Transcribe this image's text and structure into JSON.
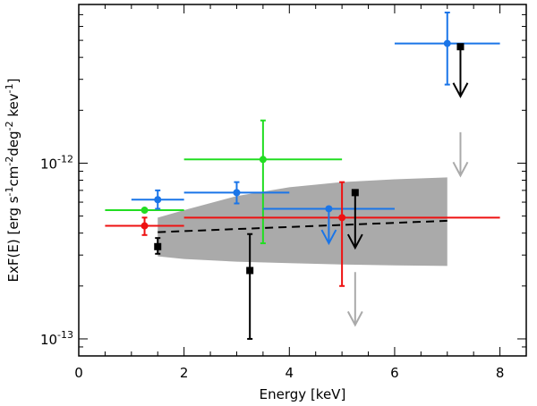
{
  "chart_data": {
    "type": "scatter",
    "title": "",
    "xlabel": "Energy [keV]",
    "ylabel_parts": [
      "ExF(E)  [erg s",
      "-1",
      "cm",
      "-2",
      "deg",
      "-2",
      " kev",
      "-1",
      "]"
    ],
    "xlim": [
      0,
      8.5
    ],
    "ylim": [
      8e-14,
      8e-12
    ],
    "yscale": "log",
    "x_ticks": [
      0,
      2,
      4,
      6,
      8
    ],
    "y_tick_labels": [
      {
        "value": 1e-12,
        "mantissa": "10",
        "exponent": "-12"
      },
      {
        "value": 1e-13,
        "mantissa": "10",
        "exponent": "-13"
      }
    ],
    "band": {
      "name": "model uncertainty",
      "color": "#aaaaaa",
      "x": [
        1.5,
        2.0,
        3.0,
        4.0,
        5.0,
        6.0,
        7.0
      ],
      "lower": [
        2.95e-13,
        2.85e-13,
        2.75e-13,
        2.7e-13,
        2.65e-13,
        2.62e-13,
        2.6e-13
      ],
      "upper": [
        4.9e-13,
        5.4e-13,
        6.5e-13,
        7.3e-13,
        7.8e-13,
        8.1e-13,
        8.3e-13
      ]
    },
    "model_line": {
      "name": "best-fit model",
      "color": "#000000",
      "x": [
        1.5,
        7.0
      ],
      "y": [
        4.05e-13,
        4.7e-13
      ]
    },
    "series": [
      {
        "name": "green",
        "color": "#22dd22",
        "marker": "circle",
        "points": [
          {
            "x": 1.25,
            "y": 5.4e-13,
            "xerr": [
              0.5,
              2.0
            ],
            "yerr": null
          },
          {
            "x": 3.5,
            "y": 1.05e-12,
            "xerr": [
              2.0,
              5.0
            ],
            "yerr": [
              3.5e-13,
              1.75e-12
            ]
          }
        ]
      },
      {
        "name": "blue",
        "color": "#1a75e8",
        "marker": "circle",
        "points": [
          {
            "x": 1.5,
            "y": 6.2e-13,
            "xerr": [
              1.0,
              2.0
            ],
            "yerr": [
              5.5e-13,
              7e-13
            ]
          },
          {
            "x": 3.0,
            "y": 6.8e-13,
            "xerr": [
              2.0,
              4.0
            ],
            "yerr": [
              5.9e-13,
              7.8e-13
            ]
          },
          {
            "x": 4.75,
            "y": 5.5e-13,
            "xerr": [
              3.5,
              6.0
            ],
            "yerr": null
          },
          {
            "x": 7.0,
            "y": 4.8e-12,
            "xerr": [
              6.0,
              8.0
            ],
            "yerr": [
              2.8e-12,
              7.2e-12
            ]
          }
        ]
      },
      {
        "name": "red",
        "color": "#ee1111",
        "marker": "circle",
        "points": [
          {
            "x": 1.25,
            "y": 4.4e-13,
            "xerr": [
              0.5,
              2.0
            ],
            "yerr": [
              3.9e-13,
              4.9e-13
            ]
          },
          {
            "x": 5.0,
            "y": 4.9e-13,
            "xerr": [
              2.0,
              8.0
            ],
            "yerr": [
              2e-13,
              7.8e-13
            ]
          }
        ]
      },
      {
        "name": "black",
        "color": "#000000",
        "marker": "square",
        "points": [
          {
            "x": 1.5,
            "y": 3.35e-13,
            "xerr": null,
            "yerr": [
              3.05e-13,
              3.75e-13
            ]
          },
          {
            "x": 3.25,
            "y": 2.45e-13,
            "xerr": null,
            "yerr": [
              1e-13,
              3.95e-13
            ]
          },
          {
            "x": 5.25,
            "y": 6.8e-13,
            "xerr": null,
            "yerr": null
          },
          {
            "x": 7.25,
            "y": 4.6e-12,
            "xerr": null,
            "yerr": null
          }
        ]
      }
    ],
    "upper_limits": [
      {
        "series": "blue",
        "x": 4.75,
        "y_top": 5.5e-13,
        "y_bottom": 3.5e-13,
        "color": "#1a75e8"
      },
      {
        "series": "black",
        "x": 5.25,
        "y_top": 6.8e-13,
        "y_bottom": 3.3e-13,
        "color": "#000000"
      },
      {
        "series": "black",
        "x": 7.25,
        "y_top": 4.6e-12,
        "y_bottom": 2.4e-12,
        "color": "#000000"
      },
      {
        "series": "gray",
        "x": 7.25,
        "y_top": 1.5e-12,
        "y_bottom": 8.5e-13,
        "color": "#aaaaaa"
      },
      {
        "series": "gray",
        "x": 5.25,
        "y_top": 2.4e-13,
        "y_bottom": 1.2e-13,
        "color": "#aaaaaa"
      }
    ]
  }
}
